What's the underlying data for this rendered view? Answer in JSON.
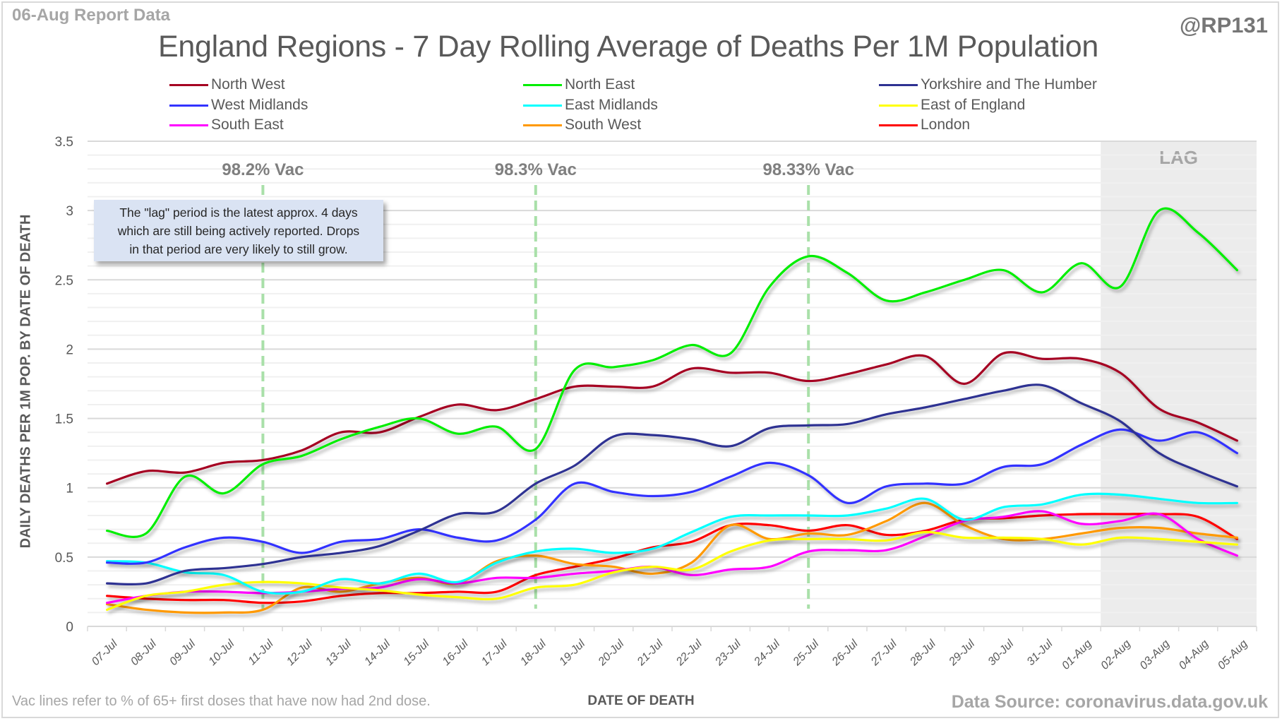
{
  "header": {
    "report_date": "06-Aug Report Data",
    "handle": "@RP131"
  },
  "footer": {
    "note": "Vac lines refer to % of 65+ first doses that have now had 2nd dose.",
    "source": "Data Source: coronavirus.data.gov.uk"
  },
  "annotation": {
    "lines": [
      "The \"lag\" period is the latest approx. 4 days",
      "which are still being actively reported.  Drops",
      "in that period are very likely to still grow."
    ]
  },
  "chart_data": {
    "type": "line",
    "title": "England Regions - 7 Day Rolling Average of Deaths Per 1M Population",
    "xlabel": "DATE OF DEATH",
    "ylabel": "DAILY DEATHS PER 1M POP. BY DATE OF DEATH",
    "ylim": [
      0,
      3.5
    ],
    "yticks": [
      "0",
      "0.5",
      "1",
      "1.5",
      "2",
      "2.5",
      "3",
      "3.5"
    ],
    "ytick_values": [
      0,
      0.5,
      1,
      1.5,
      2,
      2.5,
      3,
      3.5
    ],
    "minor_grid_step": 0.1,
    "grid": true,
    "legend_position": "top",
    "categories": [
      "07-Jul",
      "08-Jul",
      "09-Jul",
      "10-Jul",
      "11-Jul",
      "12-Jul",
      "13-Jul",
      "14-Jul",
      "15-Jul",
      "16-Jul",
      "17-Jul",
      "18-Jul",
      "19-Jul",
      "20-Jul",
      "21-Jul",
      "22-Jul",
      "23-Jul",
      "24-Jul",
      "25-Jul",
      "26-Jul",
      "27-Jul",
      "28-Jul",
      "29-Jul",
      "30-Jul",
      "31-Jul",
      "01-Aug",
      "02-Aug",
      "03-Aug",
      "04-Aug",
      "05-Aug"
    ],
    "series": [
      {
        "name": "North West",
        "color": "#a50021",
        "values": [
          1.03,
          1.12,
          1.11,
          1.18,
          1.2,
          1.27,
          1.4,
          1.4,
          1.51,
          1.6,
          1.56,
          1.64,
          1.73,
          1.73,
          1.73,
          1.86,
          1.83,
          1.83,
          1.77,
          1.82,
          1.89,
          1.95,
          1.75,
          1.97,
          1.93,
          1.93,
          1.83,
          1.57,
          1.47,
          1.34
        ]
      },
      {
        "name": "North East",
        "color": "#00ee00",
        "values": [
          0.69,
          0.67,
          1.08,
          0.96,
          1.17,
          1.23,
          1.35,
          1.44,
          1.5,
          1.39,
          1.44,
          1.28,
          1.85,
          1.87,
          1.92,
          2.03,
          1.97,
          2.45,
          2.67,
          2.55,
          2.35,
          2.41,
          2.5,
          2.57,
          2.41,
          2.62,
          2.45,
          3.0,
          2.84,
          2.57
        ]
      },
      {
        "name": "Yorkshire and The Humber",
        "color": "#2e3192",
        "values": [
          0.31,
          0.31,
          0.4,
          0.42,
          0.45,
          0.5,
          0.53,
          0.58,
          0.69,
          0.81,
          0.83,
          1.03,
          1.16,
          1.37,
          1.38,
          1.35,
          1.3,
          1.43,
          1.45,
          1.46,
          1.53,
          1.58,
          1.64,
          1.7,
          1.74,
          1.61,
          1.48,
          1.25,
          1.12,
          1.01
        ]
      },
      {
        "name": "West Midlands",
        "color": "#3333ff",
        "values": [
          0.46,
          0.46,
          0.57,
          0.64,
          0.61,
          0.53,
          0.61,
          0.63,
          0.7,
          0.64,
          0.62,
          0.77,
          1.03,
          0.97,
          0.94,
          0.97,
          1.08,
          1.18,
          1.09,
          0.89,
          1.01,
          1.03,
          1.03,
          1.15,
          1.17,
          1.31,
          1.42,
          1.34,
          1.4,
          1.25
        ]
      },
      {
        "name": "East Midlands",
        "color": "#00ffff",
        "values": [
          0.47,
          0.46,
          0.39,
          0.37,
          0.25,
          0.25,
          0.34,
          0.31,
          0.38,
          0.32,
          0.46,
          0.54,
          0.56,
          0.53,
          0.56,
          0.68,
          0.79,
          0.8,
          0.8,
          0.8,
          0.85,
          0.92,
          0.77,
          0.86,
          0.88,
          0.95,
          0.95,
          0.92,
          0.89,
          0.89
        ]
      },
      {
        "name": "East of England",
        "color": "#ffff00",
        "values": [
          0.12,
          0.22,
          0.25,
          0.3,
          0.32,
          0.31,
          0.28,
          0.26,
          0.23,
          0.21,
          0.2,
          0.28,
          0.3,
          0.39,
          0.43,
          0.41,
          0.54,
          0.62,
          0.63,
          0.63,
          0.62,
          0.68,
          0.64,
          0.64,
          0.63,
          0.59,
          0.64,
          0.63,
          0.61,
          0.59
        ]
      },
      {
        "name": "South East",
        "color": "#ff00ff",
        "values": [
          0.17,
          0.22,
          0.25,
          0.25,
          0.24,
          0.25,
          0.27,
          0.28,
          0.34,
          0.31,
          0.35,
          0.35,
          0.38,
          0.4,
          0.43,
          0.37,
          0.41,
          0.43,
          0.54,
          0.55,
          0.55,
          0.65,
          0.76,
          0.79,
          0.83,
          0.74,
          0.76,
          0.81,
          0.63,
          0.51
        ]
      },
      {
        "name": "South West",
        "color": "#ff9900",
        "values": [
          0.16,
          0.12,
          0.1,
          0.1,
          0.12,
          0.28,
          0.25,
          0.31,
          0.35,
          0.31,
          0.47,
          0.51,
          0.45,
          0.43,
          0.38,
          0.46,
          0.73,
          0.63,
          0.67,
          0.66,
          0.76,
          0.89,
          0.73,
          0.63,
          0.63,
          0.67,
          0.71,
          0.71,
          0.67,
          0.64
        ]
      },
      {
        "name": "London",
        "color": "#ff0000",
        "values": [
          0.22,
          0.2,
          0.19,
          0.19,
          0.17,
          0.18,
          0.22,
          0.24,
          0.24,
          0.25,
          0.25,
          0.37,
          0.43,
          0.49,
          0.57,
          0.61,
          0.73,
          0.73,
          0.69,
          0.73,
          0.66,
          0.69,
          0.77,
          0.78,
          0.8,
          0.81,
          0.81,
          0.81,
          0.79,
          0.63
        ]
      }
    ],
    "vac_lines": [
      {
        "label": "98.2% Vac",
        "category": "11-Jul"
      },
      {
        "label": "98.3% Vac",
        "category": "18-Jul"
      },
      {
        "label": "98.33% Vac",
        "category": "25-Jul"
      }
    ],
    "lag_region": {
      "label": "LAG",
      "from_category": "02-Aug",
      "to_category": "05-Aug"
    }
  }
}
